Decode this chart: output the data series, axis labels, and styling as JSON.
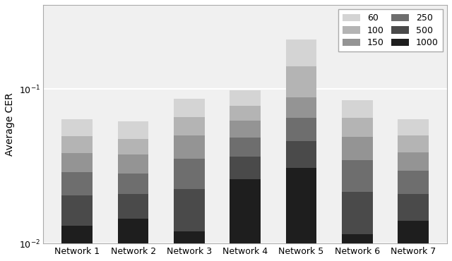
{
  "networks": [
    "Network 1",
    "Network 2",
    "Network 3",
    "Network 4",
    "Network 5",
    "Network 6",
    "Network 7"
  ],
  "categories": [
    "60",
    "100",
    "150",
    "250",
    "500",
    "1000"
  ],
  "colors": [
    "#d4d4d4",
    "#b4b4b4",
    "#949494",
    "#6e6e6e",
    "#4a4a4a",
    "#1e1e1e"
  ],
  "values": [
    [
      0.0145,
      0.011,
      0.0095,
      0.0085,
      0.0075,
      0.013
    ],
    [
      0.0145,
      0.01,
      0.009,
      0.0075,
      0.0065,
      0.0145
    ],
    [
      0.02,
      0.016,
      0.0145,
      0.013,
      0.0105,
      0.012
    ],
    [
      0.02,
      0.0155,
      0.014,
      0.012,
      0.0105,
      0.026
    ],
    [
      0.07,
      0.052,
      0.023,
      0.019,
      0.015,
      0.031
    ],
    [
      0.02,
      0.016,
      0.0145,
      0.013,
      0.01,
      0.0115
    ],
    [
      0.014,
      0.011,
      0.0095,
      0.0085,
      0.007,
      0.014
    ]
  ],
  "ylabel": "Average CER",
  "ylim": [
    0.01,
    0.35
  ],
  "background_color": "#f0f0f0",
  "grid_color": "#ffffff",
  "legend_ncol": 2
}
